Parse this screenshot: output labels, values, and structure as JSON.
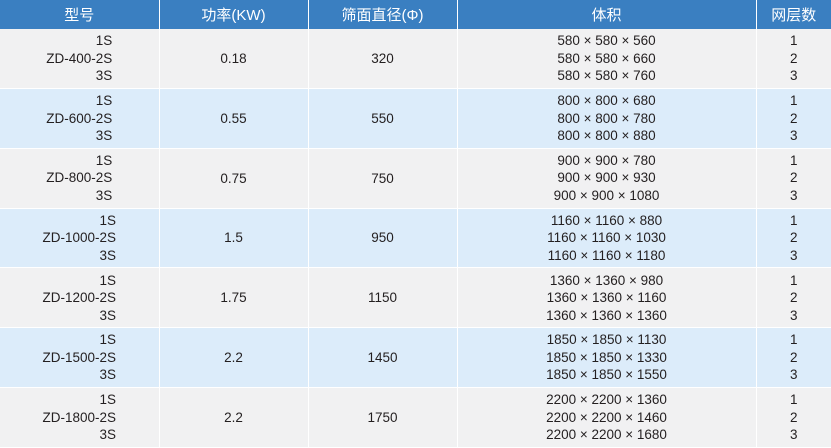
{
  "headers": [
    "型号",
    "功率(KW)",
    "筛面直径(Φ)",
    "体积",
    "网层数"
  ],
  "rows": [
    {
      "models": [
        "1S",
        "ZD-400-2S",
        "3S"
      ],
      "power": "0.18",
      "diameter": "320",
      "volumes": [
        "580 × 580 × 560",
        "580 × 580 × 660",
        "580 × 580 × 760"
      ],
      "layers": [
        "1",
        "2",
        "3"
      ]
    },
    {
      "models": [
        "1S",
        "ZD-600-2S",
        "3S"
      ],
      "power": "0.55",
      "diameter": "550",
      "volumes": [
        "800 × 800 × 680",
        "800 × 800 × 780",
        "800 × 800 × 880"
      ],
      "layers": [
        "1",
        "2",
        "3"
      ]
    },
    {
      "models": [
        "1S",
        "ZD-800-2S",
        "3S"
      ],
      "power": "0.75",
      "diameter": "750",
      "volumes": [
        "900 × 900 × 780",
        "900 × 900 × 930",
        "900 × 900 × 1080"
      ],
      "layers": [
        "1",
        "2",
        "3"
      ]
    },
    {
      "models": [
        "1S",
        "ZD-1000-2S",
        "3S"
      ],
      "power": "1.5",
      "diameter": "950",
      "volumes": [
        "1160 × 1160 × 880",
        "1160 × 1160 × 1030",
        "1160 × 1160 × 1180"
      ],
      "layers": [
        "1",
        "2",
        "3"
      ]
    },
    {
      "models": [
        "1S",
        "ZD-1200-2S",
        "3S"
      ],
      "power": "1.75",
      "diameter": "1150",
      "volumes": [
        "1360 × 1360 × 980",
        "1360 × 1360 × 1160",
        "1360 × 1360 × 1360"
      ],
      "layers": [
        "1",
        "2",
        "3"
      ]
    },
    {
      "models": [
        "1S",
        "ZD-1500-2S",
        "3S"
      ],
      "power": "2.2",
      "diameter": "1450",
      "volumes": [
        "1850 × 1850 × 1130",
        "1850 × 1850 × 1330",
        "1850 × 1850 × 1550"
      ],
      "layers": [
        "1",
        "2",
        "3"
      ]
    },
    {
      "models": [
        "1S",
        "ZD-1800-2S",
        "3S"
      ],
      "power": "2.2",
      "diameter": "1750",
      "volumes": [
        "2200 × 2200 × 1360",
        "2200 × 2200 × 1460",
        "2200 × 2200 × 1680"
      ],
      "layers": [
        "1",
        "2",
        "3"
      ]
    }
  ]
}
